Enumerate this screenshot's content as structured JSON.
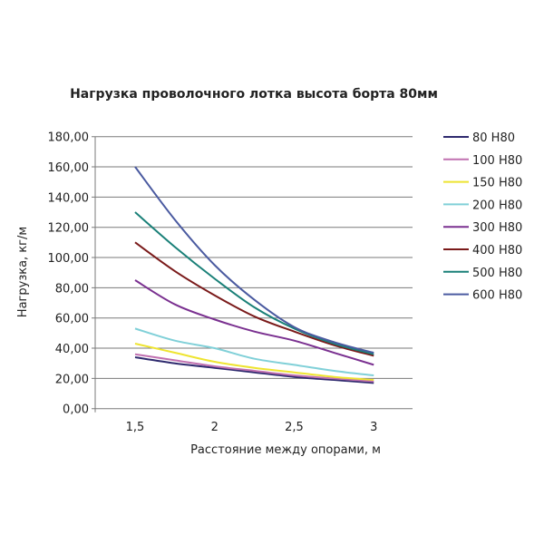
{
  "chart_data": {
    "type": "line",
    "title": "Нагрузка проволочного лотка высота борта 80мм",
    "xlabel": "Расстояние между опорами, м",
    "ylabel": "Нагрузка, кг/м",
    "x": [
      1.5,
      1.75,
      2,
      2.25,
      2.5,
      2.75,
      3
    ],
    "x_ticks": [
      1.5,
      2,
      2.5,
      3
    ],
    "x_tick_labels": [
      "1,5",
      "2",
      "2,5",
      "3"
    ],
    "xlim": [
      1.375,
      3.375
    ],
    "ylim": [
      0,
      180
    ],
    "y_tick_labels": [
      "0,00",
      "20,00",
      "40,00",
      "60,00",
      "80,00",
      "100,00",
      "120,00",
      "140,00",
      "160,00",
      "180,00"
    ],
    "grid": "horizontal",
    "legend": "right",
    "series": [
      {
        "name": "80 H80",
        "color": "#2e2a6e",
        "values": [
          34,
          30,
          27,
          24,
          21,
          19,
          17
        ]
      },
      {
        "name": "100 H80",
        "color": "#c070b0",
        "values": [
          36,
          32,
          28,
          25,
          22,
          20,
          18
        ]
      },
      {
        "name": "150 H80",
        "color": "#eee430",
        "values": [
          43,
          37,
          31,
          27,
          24,
          21,
          19
        ]
      },
      {
        "name": "200 H80",
        "color": "#80d0d8",
        "values": [
          53,
          45,
          40,
          33,
          29,
          25,
          22
        ]
      },
      {
        "name": "300 H80",
        "color": "#7a3090",
        "values": [
          85,
          69,
          59,
          51,
          45,
          37,
          29
        ]
      },
      {
        "name": "400 H80",
        "color": "#7a1a1a",
        "values": [
          110,
          91,
          75,
          61,
          51,
          42,
          35
        ]
      },
      {
        "name": "500 H80",
        "color": "#1a8078",
        "values": [
          130,
          107,
          86,
          67,
          53,
          43,
          36
        ]
      },
      {
        "name": "600 H80",
        "color": "#4a5aa0",
        "values": [
          160,
          125,
          95,
          72,
          54,
          44,
          37
        ]
      }
    ]
  }
}
